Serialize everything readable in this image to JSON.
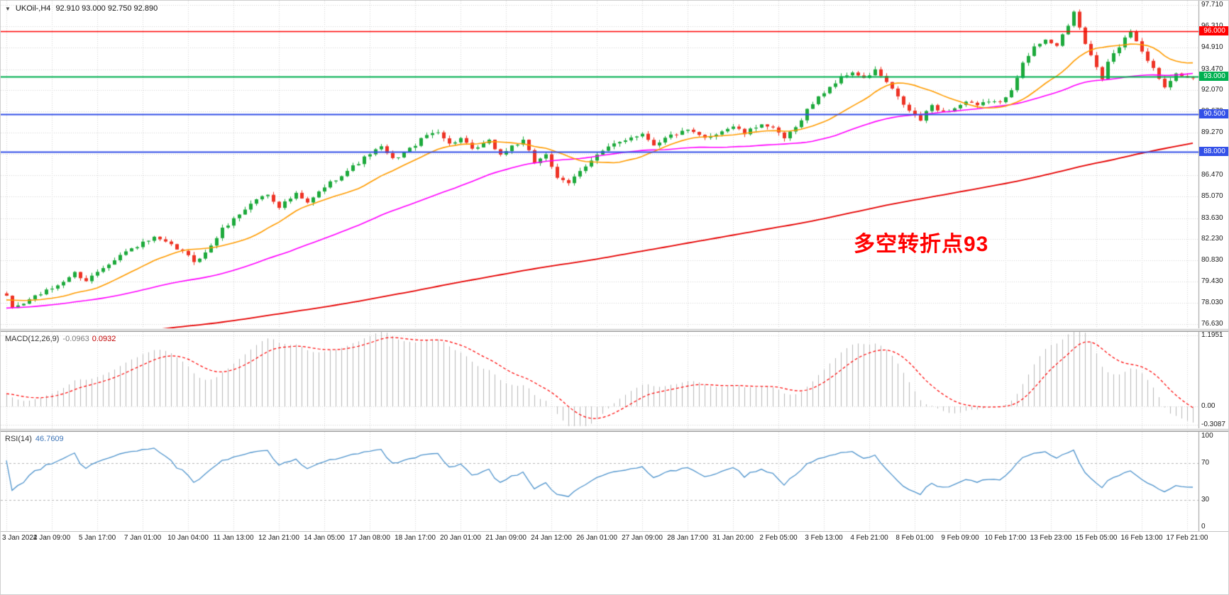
{
  "header": {
    "symbol_period": "UKOil-,H4",
    "ohlc": "92.910 93.000 92.750 92.890",
    "open": "92.910",
    "high": "93.000",
    "low": "92.750",
    "close": "92.890"
  },
  "icons": {
    "chart_menu": "▼"
  },
  "colors": {
    "up": "#1daa3c",
    "down": "#ee3325",
    "grid": "#d6d6d6",
    "ma_fast": "#ff9c00",
    "ma_mid": "#ff00ff",
    "ma_slow": "#e60000",
    "hline_red": "#ff0000",
    "hline_green": "#00b050",
    "hline_blue": "#3350e8",
    "macd_hist": "#b8b8b8",
    "macd_signal": "#ff0000",
    "rsi": "#4f94cd",
    "annotation": "#ff0000",
    "axis_text": "#1a1a1a"
  },
  "main_chart": {
    "annotation": {
      "text": "多空转折点93"
    },
    "hlines": [
      {
        "value": 96.0,
        "label": "96.000",
        "color_key": "hline_red",
        "width": 1.5
      },
      {
        "value": 93.0,
        "label": "93.000",
        "color_key": "hline_green",
        "width": 2
      },
      {
        "value": 90.5,
        "label": "90.500",
        "color_key": "hline_blue",
        "width": 2
      },
      {
        "value": 88.0,
        "label": "88.000",
        "color_key": "hline_blue",
        "width": 2
      }
    ],
    "y_min": 76.63,
    "y_max": 97.71,
    "y_ticks": [
      {
        "label": "97.710",
        "v": 97.71
      },
      {
        "label": "96.310",
        "v": 96.31
      },
      {
        "label": "94.910",
        "v": 94.91
      },
      {
        "label": "93.470",
        "v": 93.47
      },
      {
        "label": "92.070",
        "v": 92.07
      },
      {
        "label": "90.670",
        "v": 90.67
      },
      {
        "label": "89.270",
        "v": 89.27
      },
      {
        "label": "87.870",
        "v": 87.87
      },
      {
        "label": "86.470",
        "v": 86.47
      },
      {
        "label": "85.070",
        "v": 85.07
      },
      {
        "label": "83.630",
        "v": 83.63
      },
      {
        "label": "82.230",
        "v": 82.23
      },
      {
        "label": "80.830",
        "v": 80.83
      },
      {
        "label": "79.430",
        "v": 79.43
      },
      {
        "label": "78.030",
        "v": 78.03
      },
      {
        "label": "76.630",
        "v": 76.63
      }
    ]
  },
  "macd": {
    "label": "MACD(12,26,9)",
    "value_main": "-0.0963",
    "value_signal": "0.0932",
    "y_min": -0.3087,
    "y_max": 1.1951,
    "params": {
      "fast": 12,
      "slow": 26,
      "signal": 9
    },
    "ticks": [
      {
        "label": "1.1951",
        "v": 1.1951
      },
      {
        "label": "0.00",
        "v": 0
      },
      {
        "label": "-0.3087",
        "v": -0.3087
      }
    ]
  },
  "rsi": {
    "label": "RSI(14)",
    "value": "46.7609",
    "period": 14,
    "levels": [
      70,
      30
    ],
    "ticks": [
      {
        "label": "100",
        "v": 100
      },
      {
        "label": "70",
        "v": 70
      },
      {
        "label": "30",
        "v": 30
      },
      {
        "label": "0",
        "v": 0
      }
    ]
  },
  "x_axis": {
    "candles_per_tick": 8,
    "labels": [
      "3 Jan 2022",
      "4 Jan 09:00",
      "5 Jan 17:00",
      "7 Jan 01:00",
      "10 Jan 04:00",
      "11 Jan 13:00",
      "12 Jan 21:00",
      "14 Jan 05:00",
      "17 Jan 08:00",
      "18 Jan 17:00",
      "20 Jan 01:00",
      "21 Jan 09:00",
      "24 Jan 12:00",
      "26 Jan 01:00",
      "27 Jan 09:00",
      "28 Jan 17:00",
      "31 Jan 20:00",
      "2 Feb 05:00",
      "3 Feb 13:00",
      "4 Feb 21:00",
      "8 Feb 01:00",
      "9 Feb 09:00",
      "10 Feb 17:00",
      "13 Feb 23:00",
      "15 Feb 05:00",
      "16 Feb 13:00",
      "17 Feb 21:00"
    ]
  },
  "chart_data": {
    "type": "candlestick",
    "symbol": "UKOil-",
    "timeframe": "H4",
    "bars": 210,
    "current_bar_ohlc": {
      "open": 92.91,
      "high": 93.0,
      "low": 92.75,
      "close": 92.89
    },
    "price_anchors": [
      [
        0,
        78.4
      ],
      [
        1,
        77.7
      ],
      [
        3,
        78.0
      ],
      [
        5,
        78.5
      ],
      [
        7,
        78.8
      ],
      [
        9,
        79.2
      ],
      [
        12,
        80.0
      ],
      [
        14,
        79.5
      ],
      [
        17,
        80.4
      ],
      [
        20,
        81.2
      ],
      [
        23,
        81.8
      ],
      [
        26,
        82.3
      ],
      [
        28,
        82.0
      ],
      [
        31,
        81.4
      ],
      [
        33,
        80.8
      ],
      [
        35,
        81.3
      ],
      [
        38,
        82.9
      ],
      [
        41,
        83.9
      ],
      [
        44,
        84.9
      ],
      [
        46,
        85.2
      ],
      [
        48,
        84.4
      ],
      [
        51,
        85.2
      ],
      [
        53,
        84.6
      ],
      [
        56,
        85.7
      ],
      [
        59,
        86.5
      ],
      [
        62,
        87.3
      ],
      [
        64,
        87.9
      ],
      [
        66,
        88.3
      ],
      [
        68,
        87.5
      ],
      [
        71,
        88.2
      ],
      [
        74,
        89.1
      ],
      [
        76,
        89.4
      ],
      [
        78,
        88.5
      ],
      [
        80,
        88.9
      ],
      [
        82,
        88.1
      ],
      [
        85,
        88.7
      ],
      [
        87,
        87.8
      ],
      [
        89,
        88.4
      ],
      [
        91,
        88.7
      ],
      [
        93,
        87.3
      ],
      [
        95,
        87.9
      ],
      [
        97,
        86.2
      ],
      [
        99,
        85.9
      ],
      [
        101,
        86.8
      ],
      [
        104,
        87.8
      ],
      [
        107,
        88.5
      ],
      [
        110,
        89.0
      ],
      [
        112,
        89.2
      ],
      [
        114,
        88.5
      ],
      [
        117,
        89.1
      ],
      [
        120,
        89.4
      ],
      [
        123,
        88.9
      ],
      [
        126,
        89.4
      ],
      [
        128,
        89.7
      ],
      [
        130,
        89.2
      ],
      [
        133,
        89.9
      ],
      [
        135,
        89.5
      ],
      [
        137,
        88.9
      ],
      [
        139,
        89.6
      ],
      [
        141,
        90.8
      ],
      [
        143,
        91.6
      ],
      [
        145,
        92.3
      ],
      [
        147,
        92.9
      ],
      [
        149,
        93.3
      ],
      [
        151,
        92.8
      ],
      [
        153,
        93.4
      ],
      [
        155,
        92.6
      ],
      [
        157,
        91.6
      ],
      [
        159,
        90.7
      ],
      [
        161,
        90.1
      ],
      [
        163,
        91.1
      ],
      [
        165,
        90.6
      ],
      [
        167,
        90.9
      ],
      [
        169,
        91.3
      ],
      [
        171,
        91.0
      ],
      [
        173,
        91.4
      ],
      [
        175,
        91.2
      ],
      [
        177,
        92.2
      ],
      [
        179,
        93.8
      ],
      [
        181,
        94.9
      ],
      [
        183,
        95.5
      ],
      [
        185,
        95.0
      ],
      [
        187,
        96.3
      ],
      [
        188,
        97.3
      ],
      [
        189,
        96.2
      ],
      [
        190,
        95.2
      ],
      [
        191,
        94.3
      ],
      [
        192,
        93.6
      ],
      [
        193,
        92.8
      ],
      [
        194,
        93.9
      ],
      [
        196,
        95.0
      ],
      [
        198,
        96.0
      ],
      [
        200,
        94.7
      ],
      [
        202,
        93.5
      ],
      [
        204,
        92.3
      ],
      [
        206,
        93.3
      ],
      [
        208,
        92.9
      ],
      [
        209,
        92.89
      ]
    ],
    "noise": 0.12,
    "wick_extra": 0.22,
    "prehistory": {
      "bars": 200,
      "start_offset": -6.5
    },
    "overlays": [
      {
        "name": "ma-fast",
        "period": 16,
        "color_key": "ma_fast"
      },
      {
        "name": "ma-mid",
        "period": 50,
        "color_key": "ma_mid"
      },
      {
        "name": "ma-slow",
        "period": 200,
        "color_key": "ma_slow"
      }
    ],
    "indicators": [
      {
        "name": "MACD",
        "params": "12,26,9",
        "current": [
          -0.0963,
          0.0932
        ]
      },
      {
        "name": "RSI",
        "params": "14",
        "current": 46.7609
      }
    ]
  }
}
